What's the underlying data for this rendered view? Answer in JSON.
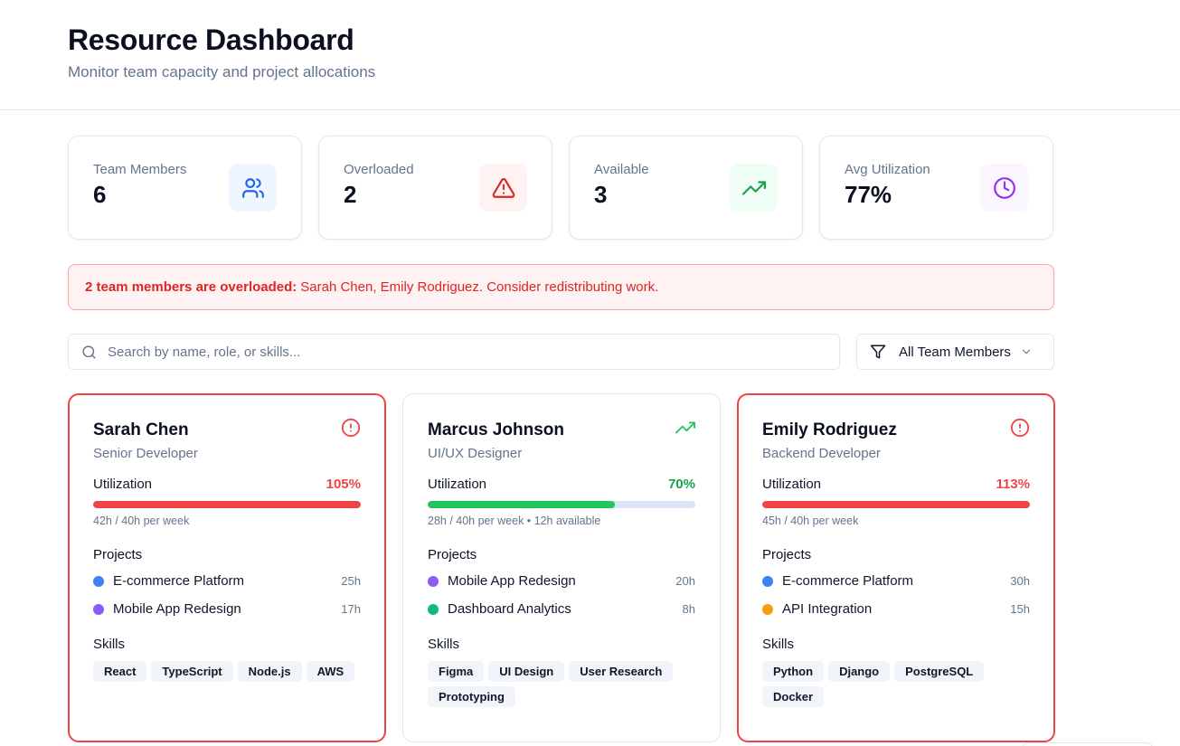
{
  "header": {
    "title": "Resource Dashboard",
    "subtitle": "Monitor team capacity and project allocations"
  },
  "stats": [
    {
      "label": "Team Members",
      "value": "6",
      "icon": "users-icon",
      "color": "#2563eb",
      "bg": "#eff6ff"
    },
    {
      "label": "Overloaded",
      "value": "2",
      "icon": "alert-triangle-icon",
      "color": "#dc2626",
      "bg": "#fef2f2"
    },
    {
      "label": "Available",
      "value": "3",
      "icon": "trending-up-icon",
      "color": "#16a34a",
      "bg": "#f0fdf4"
    },
    {
      "label": "Avg Utilization",
      "value": "77%",
      "icon": "clock-icon",
      "color": "#9333ea",
      "bg": "#faf5ff"
    }
  ],
  "alert": {
    "strong": "2 team members are overloaded:",
    "text": "Sarah Chen, Emily Rodriguez. Consider redistributing work."
  },
  "search": {
    "placeholder": "Search by name, role, or skills...",
    "value": ""
  },
  "filter": {
    "selected": "All Team Members"
  },
  "members": [
    {
      "name": "Sarah Chen",
      "role": "Senior Developer",
      "status": "overloaded",
      "status_icon": "alert-circle-icon",
      "utilization_label": "Utilization",
      "utilization": "105%",
      "utilization_fraction": 1.0,
      "bar_color": "#ef4444",
      "pct_color": "#ef4444",
      "hours_text": "42h / 40h per week",
      "projects_label": "Projects",
      "projects": [
        {
          "name": "E-commerce Platform",
          "hours": "25h",
          "color": "#3b82f6"
        },
        {
          "name": "Mobile App Redesign",
          "hours": "17h",
          "color": "#8b5cf6"
        }
      ],
      "skills_label": "Skills",
      "skills": [
        "React",
        "TypeScript",
        "Node.js",
        "AWS"
      ]
    },
    {
      "name": "Marcus Johnson",
      "role": "UI/UX Designer",
      "status": "available",
      "status_icon": "trending-up-icon",
      "utilization_label": "Utilization",
      "utilization": "70%",
      "utilization_fraction": 0.7,
      "bar_color": "#22c55e",
      "pct_color": "#16a34a",
      "hours_text": "28h / 40h per week • 12h available",
      "projects_label": "Projects",
      "projects": [
        {
          "name": "Mobile App Redesign",
          "hours": "20h",
          "color": "#8b5cf6"
        },
        {
          "name": "Dashboard Analytics",
          "hours": "8h",
          "color": "#10b981"
        }
      ],
      "skills_label": "Skills",
      "skills": [
        "Figma",
        "UI Design",
        "User Research",
        "Prototyping"
      ]
    },
    {
      "name": "Emily Rodriguez",
      "role": "Backend Developer",
      "status": "overloaded",
      "status_icon": "alert-circle-icon",
      "utilization_label": "Utilization",
      "utilization": "113%",
      "utilization_fraction": 1.0,
      "bar_color": "#ef4444",
      "pct_color": "#ef4444",
      "hours_text": "45h / 40h per week",
      "projects_label": "Projects",
      "projects": [
        {
          "name": "E-commerce Platform",
          "hours": "30h",
          "color": "#3b82f6"
        },
        {
          "name": "API Integration",
          "hours": "15h",
          "color": "#f59e0b"
        }
      ],
      "skills_label": "Skills",
      "skills": [
        "Python",
        "Django",
        "PostgreSQL",
        "Docker"
      ]
    }
  ]
}
